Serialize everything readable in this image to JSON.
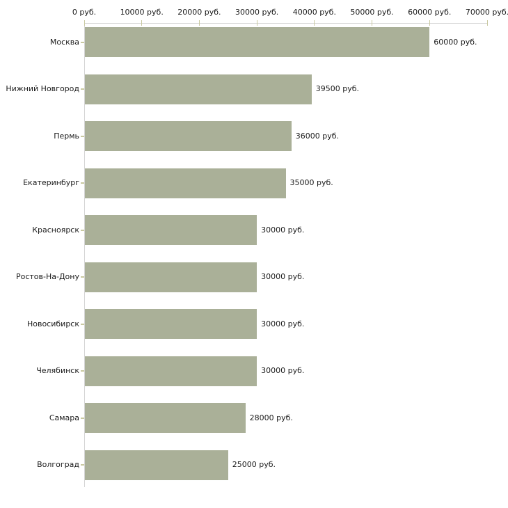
{
  "chart_data": {
    "type": "bar",
    "orientation": "horizontal",
    "title": "",
    "xlabel": "",
    "ylabel": "",
    "grid": false,
    "legend": false,
    "xlim": [
      0,
      70000
    ],
    "x_ticks": [
      0,
      10000,
      20000,
      30000,
      40000,
      50000,
      60000,
      70000
    ],
    "x_tick_labels": [
      "0 руб.",
      "10000 руб.",
      "20000 руб.",
      "30000 руб.",
      "40000 руб.",
      "50000 руб.",
      "60000 руб.",
      "70000 руб."
    ],
    "categories": [
      "Москва",
      "Нижний Новгород",
      "Пермь",
      "Екатеринбург",
      "Красноярск",
      "Ростов-На-Дону",
      "Новосибирск",
      "Челябинск",
      "Самара",
      "Волгоград"
    ],
    "values": [
      60000,
      39500,
      36000,
      35000,
      30000,
      30000,
      30000,
      30000,
      28000,
      25000
    ],
    "value_labels": [
      "60000 руб.",
      "39500 руб.",
      "36000 руб.",
      "35000 руб.",
      "30000 руб.",
      "30000 руб.",
      "30000 руб.",
      "30000 руб.",
      "28000 руб.",
      "25000 руб."
    ],
    "colors": {
      "bar_fill": "#aab098",
      "axis_line": "#d4d4d4",
      "tick_mark": "#c9c9a0",
      "text": "#1a1a1a",
      "background": "#ffffff"
    }
  }
}
